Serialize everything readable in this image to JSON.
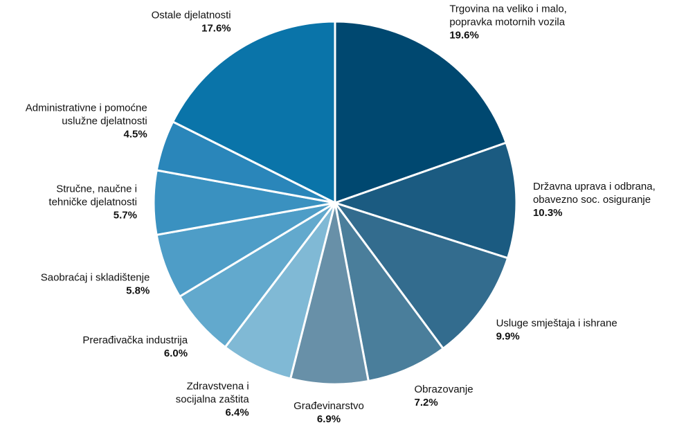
{
  "chart_data": {
    "type": "pie",
    "categories": [
      [
        "Trgovina na veliko i malo,",
        "popravka motornih vozila"
      ],
      [
        "Državna uprava i odbrana,",
        "obavezno soc. osiguranje"
      ],
      [
        "Usluge smještaja i ishrane"
      ],
      [
        "Obrazovanje"
      ],
      [
        "Građevinarstvo"
      ],
      [
        "Zdravstvena i",
        "socijalna zaštita"
      ],
      [
        "Prerađivačka industrija"
      ],
      [
        "Saobraćaj i skladištenje"
      ],
      [
        "Stručne, naučne i",
        "tehničke djelatnosti"
      ],
      [
        "Administrativne i pomoćne",
        "uslužne djelatnosti"
      ],
      [
        "Ostale djelatnosti"
      ]
    ],
    "values": [
      19.6,
      10.3,
      9.9,
      7.2,
      6.9,
      6.4,
      6.0,
      5.8,
      5.7,
      4.5,
      17.6
    ],
    "value_labels": [
      "19.6%",
      "10.3%",
      "9.9%",
      "7.2%",
      "6.9%",
      "6.4%",
      "6.0%",
      "5.8%",
      "5.7%",
      "4.5%",
      "17.6%"
    ],
    "colors": [
      "#004870",
      "#1b5b81",
      "#336c8e",
      "#4a7e9b",
      "#6890a8",
      "#80b9d5",
      "#62a9cd",
      "#4e9dc7",
      "#3a91c0",
      "#2a86ba",
      "#0a74a9"
    ]
  }
}
